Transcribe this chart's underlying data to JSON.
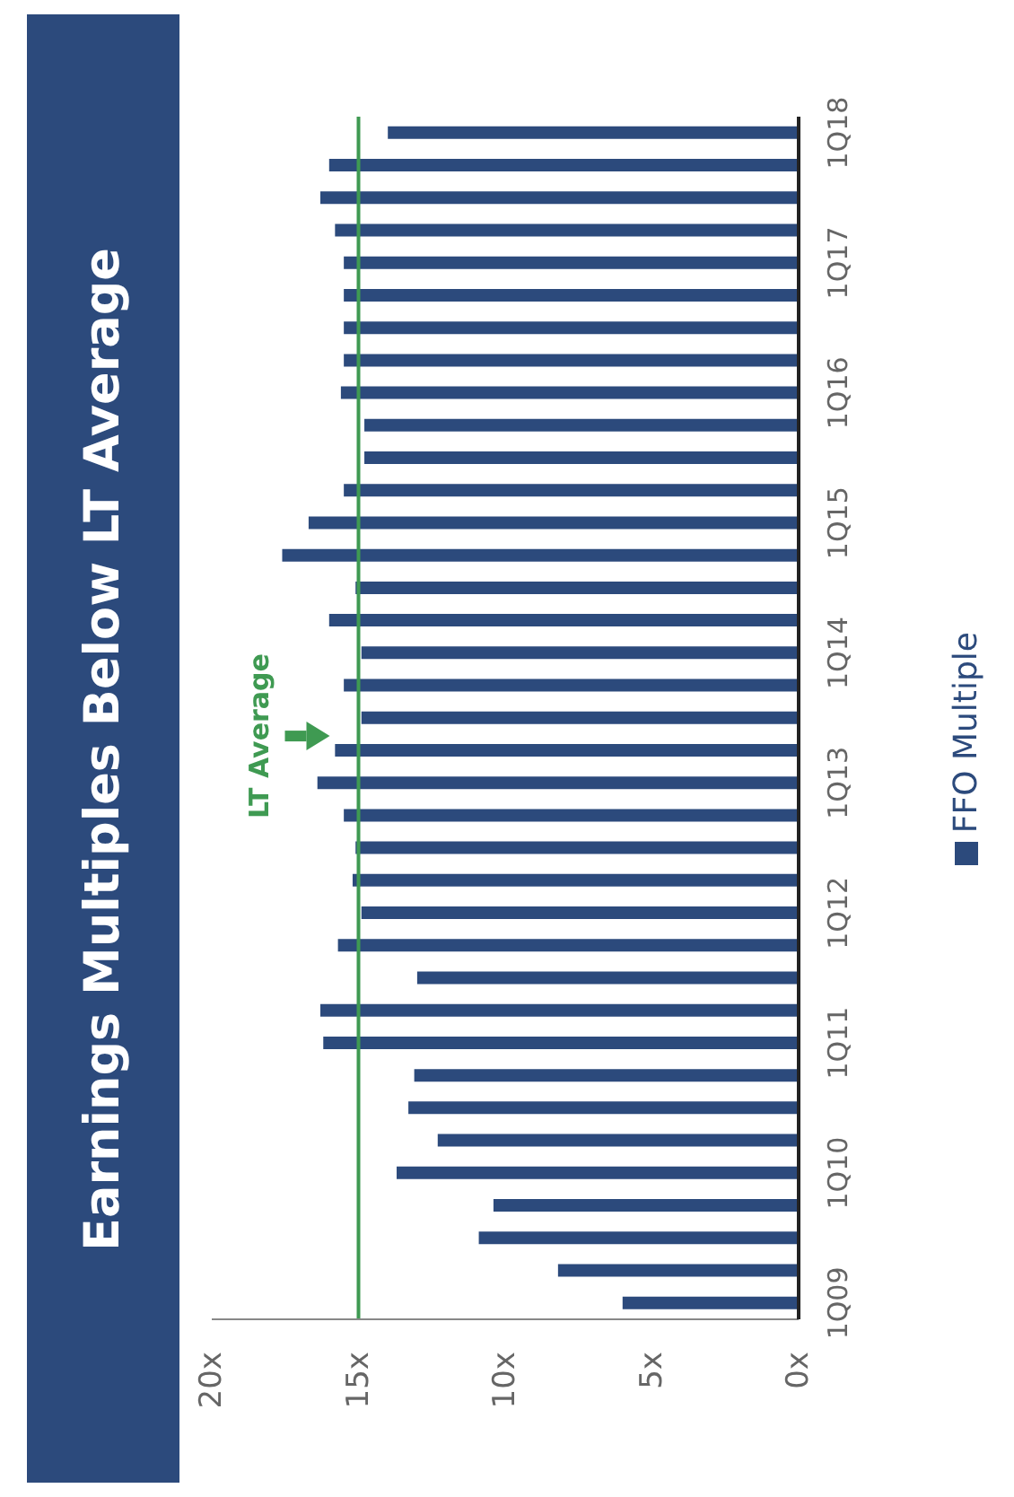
{
  "chart_data": {
    "type": "bar",
    "orientation": "horizontal",
    "title": "Earnings Multiples Below LT Average",
    "categories": [
      "1Q18",
      null,
      null,
      null,
      "1Q17",
      null,
      null,
      null,
      "1Q16",
      null,
      null,
      null,
      "1Q15",
      null,
      null,
      null,
      "1Q14",
      null,
      null,
      null,
      "1Q13",
      null,
      null,
      null,
      "1Q12",
      null,
      null,
      null,
      "1Q11",
      null,
      null,
      null,
      "1Q10",
      null,
      null,
      null,
      "1Q09"
    ],
    "series": [
      {
        "name": "FFO Multiple",
        "color": "#2c4a7c",
        "values": [
          14.0,
          16.0,
          16.3,
          15.8,
          15.5,
          15.5,
          15.5,
          15.5,
          15.6,
          14.8,
          14.8,
          15.5,
          16.7,
          17.6,
          15.1,
          16.0,
          14.9,
          15.5,
          14.9,
          15.8,
          16.4,
          15.5,
          15.1,
          15.2,
          14.9,
          15.7,
          13.0,
          16.3,
          16.2,
          13.1,
          13.3,
          12.3,
          13.7,
          10.4,
          10.9,
          8.2,
          6.0
        ]
      }
    ],
    "xlim": [
      20,
      0
    ],
    "xticks": [
      {
        "value": 20,
        "label": "20x"
      },
      {
        "value": 15,
        "label": "15x"
      },
      {
        "value": 10,
        "label": "10x"
      },
      {
        "value": 5,
        "label": "5x"
      },
      {
        "value": 0,
        "label": "0x"
      }
    ],
    "ref_lines": [
      {
        "axis": "x",
        "value": 15,
        "label": "LT Average",
        "color": "#3f9a52"
      }
    ],
    "legend": "right"
  }
}
